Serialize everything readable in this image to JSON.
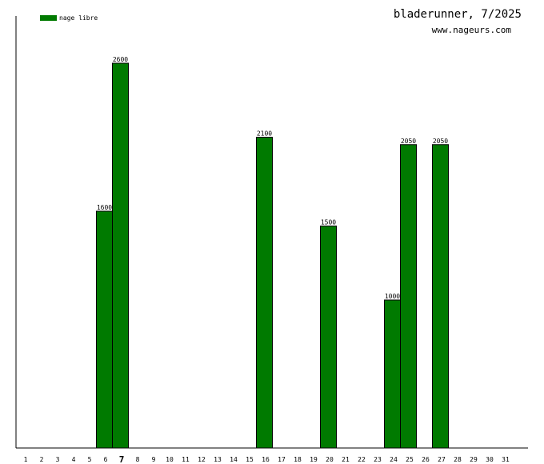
{
  "header": {
    "title": "bladerunner, 7/2025",
    "subtitle": "www.nageurs.com"
  },
  "chart_data": {
    "type": "bar",
    "categories": [
      "1",
      "2",
      "3",
      "4",
      "5",
      "6",
      "7",
      "8",
      "9",
      "10",
      "11",
      "12",
      "13",
      "14",
      "15",
      "16",
      "17",
      "18",
      "19",
      "20",
      "21",
      "22",
      "23",
      "24",
      "25",
      "26",
      "27",
      "28",
      "29",
      "30",
      "31"
    ],
    "highlight_category": "7",
    "series": [
      {
        "name": "nage libre",
        "color": "#007a00",
        "values": [
          0,
          0,
          0,
          0,
          0,
          1600,
          2600,
          0,
          0,
          0,
          0,
          0,
          0,
          0,
          0,
          2100,
          0,
          0,
          0,
          1500,
          0,
          0,
          0,
          1000,
          2050,
          0,
          2050,
          0,
          0,
          0,
          0
        ]
      }
    ],
    "data_labels": [
      "",
      "",
      "",
      "",
      "",
      "1600",
      "2600",
      "",
      "",
      "",
      "",
      "",
      "",
      "",
      "",
      "2100",
      "",
      "",
      "",
      "1500",
      "",
      "",
      "",
      "1000",
      "2050",
      "",
      "2050",
      "",
      "",
      "",
      ""
    ],
    "ylim": [
      0,
      2900
    ],
    "legend_position": "top-left",
    "grid": false
  }
}
